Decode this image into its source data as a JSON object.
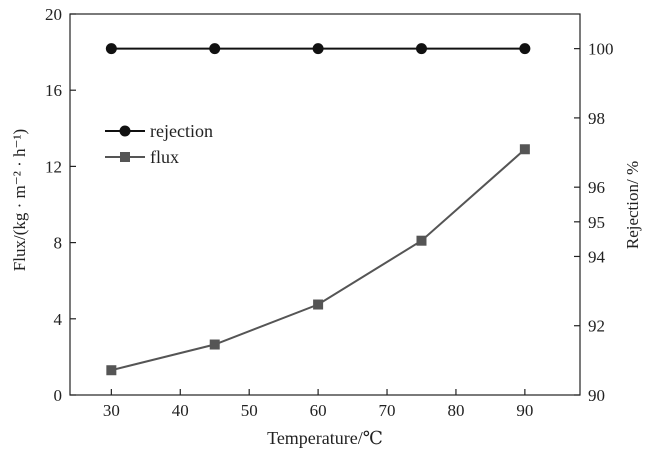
{
  "chart_data": {
    "type": "line",
    "title": "",
    "xlabel": "Temperature/℃",
    "ylabel_left": "Flux/(kg · m⁻² · h⁻¹)",
    "ylabel_right": "Rejection/ %",
    "x": [
      30,
      45,
      60,
      75,
      90
    ],
    "x_ticks": [
      30,
      40,
      50,
      60,
      70,
      80,
      90
    ],
    "xlim": [
      24,
      98
    ],
    "ylim_left": [
      0,
      20
    ],
    "y_ticks_left": [
      0,
      4,
      8,
      12,
      16,
      20
    ],
    "ylim_right": [
      90,
      101
    ],
    "y_ticks_right": [
      90,
      92,
      94,
      95,
      96,
      98,
      100
    ],
    "grid": false,
    "legend_position": "upper-left",
    "series": [
      {
        "name": "rejection",
        "axis": "right",
        "marker": "circle",
        "color": "#111111",
        "values": [
          100,
          100,
          100,
          100,
          100
        ]
      },
      {
        "name": "flux",
        "axis": "left",
        "marker": "square",
        "color": "#555555",
        "values": [
          1.3,
          2.65,
          4.75,
          8.1,
          12.9
        ]
      }
    ]
  }
}
